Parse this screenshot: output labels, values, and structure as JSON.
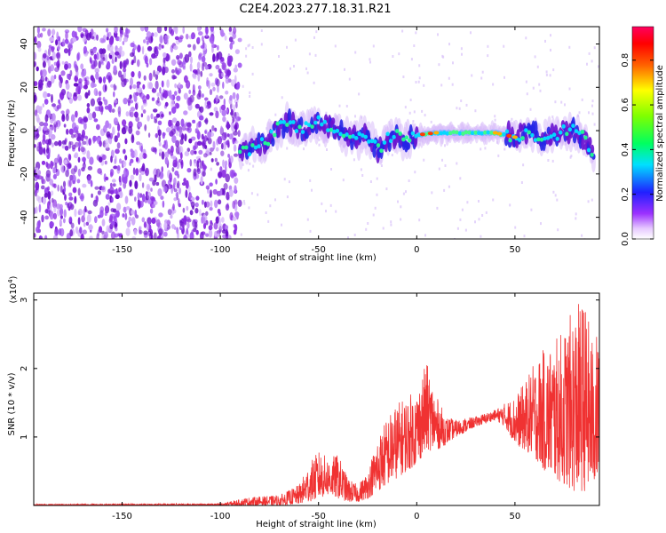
{
  "title": "C2E4.2023.277.18.31.R21",
  "chart_data": [
    {
      "type": "heatmap",
      "xlabel": "Height of straight line (km)",
      "ylabel": "Frequency (Hz)",
      "xlim": [
        -195,
        93
      ],
      "ylim": [
        -50,
        48
      ],
      "x_ticks": [
        -150,
        -100,
        -50,
        0,
        50
      ],
      "x_tick_labels": [
        "-150",
        "-100",
        "-50",
        "0",
        "50"
      ],
      "y_ticks": [
        -40,
        -20,
        0,
        20,
        40
      ],
      "y_tick_labels": [
        "-40",
        "-20",
        "0",
        "20",
        "40"
      ],
      "colorbar": {
        "label": "Normalized spectral amplitude",
        "range": [
          0,
          0.95
        ],
        "ticks": [
          0.0,
          0.2,
          0.4,
          0.6,
          0.8
        ],
        "tick_labels": [
          "0.0",
          "0.2",
          "0.4",
          "0.6",
          "0.8"
        ],
        "colormap": "rainbow (white-violet-blue-cyan-green-yellow-red-magenta)"
      },
      "noise_region_x": [
        -195,
        -90
      ],
      "signal_track": [
        {
          "x": -90,
          "y": -10
        },
        {
          "x": -85,
          "y": -9
        },
        {
          "x": -80,
          "y": -7
        },
        {
          "x": -75,
          "y": -4
        },
        {
          "x": -70,
          "y": 2
        },
        {
          "x": -65,
          "y": 4
        },
        {
          "x": -60,
          "y": 0
        },
        {
          "x": -55,
          "y": 2
        },
        {
          "x": -50,
          "y": 4
        },
        {
          "x": -45,
          "y": 2
        },
        {
          "x": -40,
          "y": 0
        },
        {
          "x": -35,
          "y": -3
        },
        {
          "x": -30,
          "y": -4
        },
        {
          "x": -25,
          "y": -2
        },
        {
          "x": -20,
          "y": -9
        },
        {
          "x": -15,
          "y": -4
        },
        {
          "x": -10,
          "y": -2
        },
        {
          "x": -5,
          "y": -5
        },
        {
          "x": 0,
          "y": -2
        },
        {
          "x": 10,
          "y": -1
        },
        {
          "x": 20,
          "y": -1
        },
        {
          "x": 30,
          "y": -1
        },
        {
          "x": 40,
          "y": -1
        },
        {
          "x": 45,
          "y": -2
        },
        {
          "x": 50,
          "y": -3
        },
        {
          "x": 55,
          "y": -1
        },
        {
          "x": 60,
          "y": -2
        },
        {
          "x": 65,
          "y": -3
        },
        {
          "x": 70,
          "y": -2
        },
        {
          "x": 75,
          "y": 0
        },
        {
          "x": 80,
          "y": 0
        },
        {
          "x": 85,
          "y": -3
        },
        {
          "x": 90,
          "y": -10
        }
      ]
    },
    {
      "type": "line",
      "xlabel": "Height of straight line (km)",
      "ylabel": "SNR (10 * v/v)",
      "scale_label": "(x10",
      "scale_exponent": "4",
      "xlim": [
        -195,
        93
      ],
      "ylim": [
        0,
        3.1
      ],
      "x_ticks": [
        -150,
        -100,
        -50,
        0,
        50
      ],
      "x_tick_labels": [
        "-150",
        "-100",
        "-50",
        "0",
        "50"
      ],
      "y_ticks": [
        1,
        2,
        3
      ],
      "y_tick_labels": [
        "1",
        "2",
        "3"
      ],
      "series": [
        {
          "color": "#f03232",
          "envelope": [
            {
              "x": -195,
              "lo": 0.0,
              "hi": 0.02
            },
            {
              "x": -100,
              "lo": 0.0,
              "hi": 0.03
            },
            {
              "x": -85,
              "lo": 0.0,
              "hi": 0.12
            },
            {
              "x": -70,
              "lo": 0.0,
              "hi": 0.15
            },
            {
              "x": -60,
              "lo": 0.02,
              "hi": 0.3
            },
            {
              "x": -55,
              "lo": 0.05,
              "hi": 0.6
            },
            {
              "x": -50,
              "lo": 0.1,
              "hi": 0.8
            },
            {
              "x": -45,
              "lo": 0.15,
              "hi": 0.7
            },
            {
              "x": -40,
              "lo": 0.1,
              "hi": 0.75
            },
            {
              "x": -35,
              "lo": 0.05,
              "hi": 0.4
            },
            {
              "x": -30,
              "lo": 0.05,
              "hi": 0.3
            },
            {
              "x": -25,
              "lo": 0.1,
              "hi": 0.5
            },
            {
              "x": -20,
              "lo": 0.2,
              "hi": 1.0
            },
            {
              "x": -15,
              "lo": 0.3,
              "hi": 1.3
            },
            {
              "x": -10,
              "lo": 0.4,
              "hi": 1.5
            },
            {
              "x": -5,
              "lo": 0.5,
              "hi": 1.6
            },
            {
              "x": 0,
              "lo": 0.6,
              "hi": 1.7
            },
            {
              "x": 5,
              "lo": 0.8,
              "hi": 2.1
            },
            {
              "x": 10,
              "lo": 0.8,
              "hi": 1.6
            },
            {
              "x": 15,
              "lo": 0.9,
              "hi": 1.3
            },
            {
              "x": 20,
              "lo": 1.0,
              "hi": 1.25
            },
            {
              "x": 30,
              "lo": 1.15,
              "hi": 1.3
            },
            {
              "x": 40,
              "lo": 1.25,
              "hi": 1.4
            },
            {
              "x": 45,
              "lo": 1.15,
              "hi": 1.5
            },
            {
              "x": 50,
              "lo": 0.9,
              "hi": 1.6
            },
            {
              "x": 55,
              "lo": 0.8,
              "hi": 1.8
            },
            {
              "x": 60,
              "lo": 0.7,
              "hi": 2.1
            },
            {
              "x": 65,
              "lo": 0.5,
              "hi": 2.3
            },
            {
              "x": 70,
              "lo": 0.4,
              "hi": 2.4
            },
            {
              "x": 75,
              "lo": 0.3,
              "hi": 2.6
            },
            {
              "x": 80,
              "lo": 0.2,
              "hi": 2.9
            },
            {
              "x": 85,
              "lo": 0.2,
              "hi": 3.05
            },
            {
              "x": 90,
              "lo": 0.3,
              "hi": 2.4
            },
            {
              "x": 93,
              "lo": 0.4,
              "hi": 2.6
            }
          ]
        }
      ]
    }
  ]
}
